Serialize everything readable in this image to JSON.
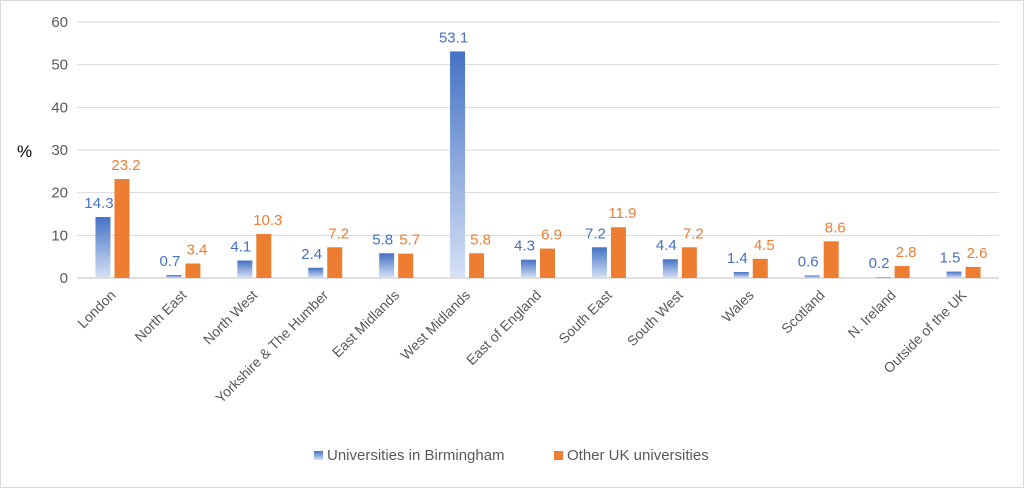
{
  "chart_data": {
    "type": "bar",
    "ylabel": "%",
    "ylim": [
      0,
      60
    ],
    "yticks": [
      0,
      10,
      20,
      30,
      40,
      50,
      60
    ],
    "grid": true,
    "legend_position": "bottom",
    "categories": [
      "London",
      "North East",
      "North West",
      "Yorkshire & The Humber",
      "East Midlands",
      "West Midlands",
      "East of England",
      "South East",
      "South West",
      "Wales",
      "Scotland",
      "N. Ireland",
      "Outside of the UK"
    ],
    "series": [
      {
        "name": "Universities in Birmingham",
        "color": "#4472c4",
        "label_color": "#4472c4",
        "values": [
          14.3,
          0.7,
          4.1,
          2.4,
          5.8,
          53.1,
          4.3,
          7.2,
          4.4,
          1.4,
          0.6,
          0.2,
          1.5
        ],
        "labels": [
          "14.3",
          "0.7",
          "4.1",
          "2.4",
          "5.8",
          "53.1",
          "4.3",
          "7.2",
          "4.4",
          "1.4",
          "0.6",
          "0.2",
          "1.5"
        ]
      },
      {
        "name": "Other UK universities",
        "color": "#ed7d31",
        "label_color": "#ed7d31",
        "values": [
          23.2,
          3.4,
          10.3,
          7.2,
          5.7,
          5.8,
          6.9,
          11.9,
          7.2,
          4.5,
          8.6,
          2.8,
          2.6
        ],
        "labels": [
          "23.2",
          "3.4",
          "10.3",
          "7.2",
          "5.7",
          "5.8",
          "6.9",
          "11.9",
          "7.2",
          "4.5",
          "8.6",
          "2.8",
          "2.6"
        ]
      }
    ]
  }
}
